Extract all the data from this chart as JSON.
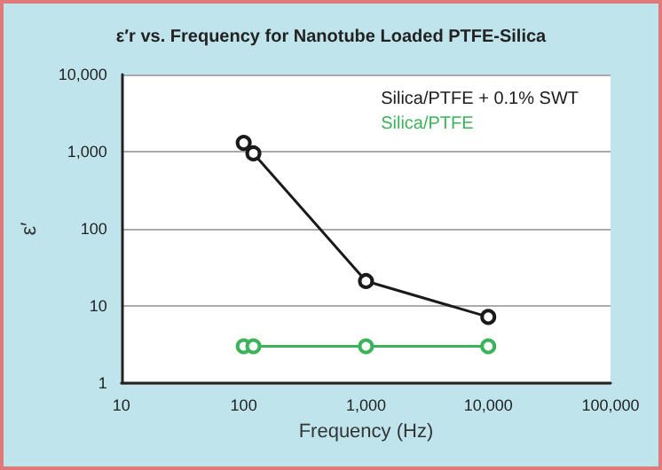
{
  "chart_data": {
    "type": "line",
    "title": "ε′r vs. Frequency for Nanotube Loaded PTFE-Silica",
    "xlabel": "Frequency (Hz)",
    "ylabel": "ε′",
    "log": "xy",
    "xlim": [
      10,
      100000
    ],
    "ylim": [
      1,
      10000
    ],
    "xticks": [
      10,
      100,
      {
        "value": 1000,
        "label": "1,000"
      },
      {
        "value": 10000,
        "label": "10,000"
      },
      {
        "value": 100000,
        "label": "100,000"
      }
    ],
    "yticks": [
      1,
      10,
      100,
      {
        "value": 1000,
        "label": "1,000"
      },
      {
        "value": 10000,
        "label": "10,000"
      }
    ],
    "grid": "y",
    "legend": "top right",
    "marker": "circle",
    "line_style": "solid",
    "series": [
      {
        "name": "Silica/PTFE + 0.1% SWT",
        "color": "#1a1a1a",
        "x": [
          100,
          120,
          1000,
          10000
        ],
        "values": [
          1300,
          950,
          21,
          7.2
        ]
      },
      {
        "name": "Silica/PTFE",
        "color": "#3cb35a",
        "x": [
          100,
          120,
          1000,
          10000
        ],
        "values": [
          3,
          3,
          3,
          3
        ]
      }
    ]
  }
}
